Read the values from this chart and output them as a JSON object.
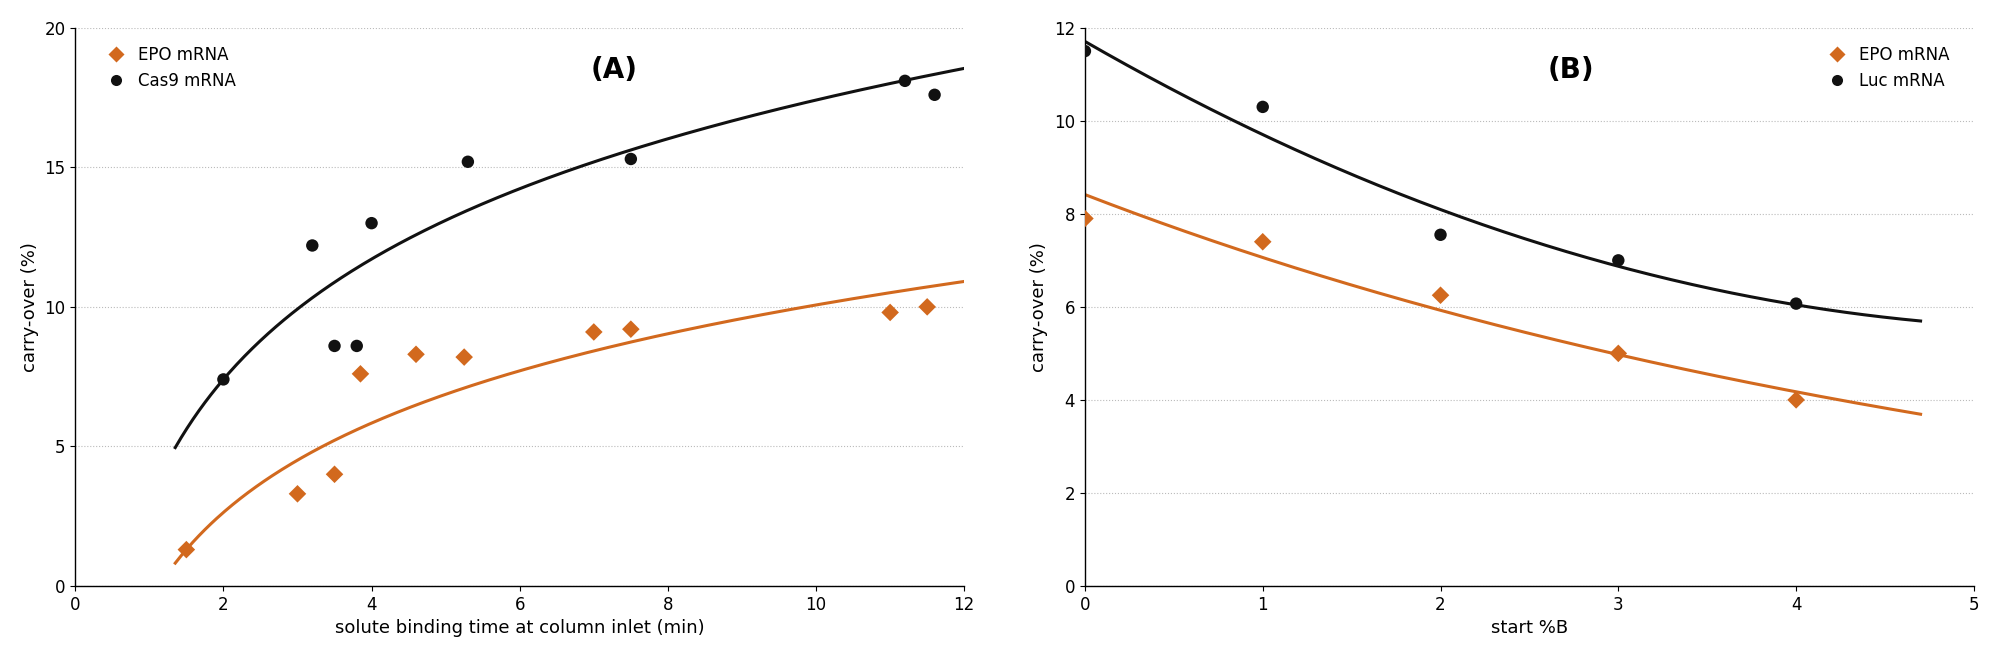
{
  "panel_A": {
    "title": "(A)",
    "xlabel": "solute binding time at column inlet (min)",
    "ylabel": "carry-over (%)",
    "xlim": [
      0,
      12
    ],
    "ylim": [
      0,
      20
    ],
    "xticks": [
      0,
      2,
      4,
      6,
      8,
      10,
      12
    ],
    "yticks": [
      0,
      5,
      10,
      15,
      20
    ],
    "epo_scatter_x": [
      1.5,
      3.0,
      3.5,
      3.85,
      4.6,
      5.25,
      7.0,
      7.5,
      11.0,
      11.5
    ],
    "epo_scatter_y": [
      1.3,
      3.3,
      4.0,
      7.6,
      8.3,
      8.2,
      9.1,
      9.2,
      9.8,
      10.0
    ],
    "cas9_scatter_x": [
      2.0,
      3.2,
      3.5,
      3.8,
      4.0,
      5.3,
      7.5,
      11.2,
      11.6
    ],
    "cas9_scatter_y": [
      7.4,
      12.2,
      8.6,
      8.6,
      13.0,
      15.2,
      15.3,
      18.1,
      17.6
    ],
    "epo_curve_a": 3.3,
    "epo_curve_b": 0.46,
    "cas9_curve_a": 6.22,
    "cas9_curve_b": 3.09,
    "legend_epo": "EPO mRNA",
    "legend_cas9": "Cas9 mRNA"
  },
  "panel_B": {
    "title": "(B)",
    "xlabel": "start %B",
    "ylabel": "carry-over (%)",
    "xlim": [
      0,
      5
    ],
    "ylim": [
      0,
      12
    ],
    "xticks": [
      0,
      1,
      2,
      3,
      4,
      5
    ],
    "yticks": [
      0,
      2,
      4,
      6,
      8,
      10,
      12
    ],
    "epo_scatter_x": [
      0.0,
      1.0,
      2.0,
      3.0,
      4.0
    ],
    "epo_scatter_y": [
      7.9,
      7.4,
      6.25,
      5.0,
      4.0
    ],
    "luc_scatter_x": [
      0.0,
      1.0,
      2.0,
      3.0,
      4.0
    ],
    "luc_scatter_y": [
      11.5,
      10.3,
      7.55,
      7.0,
      6.07
    ],
    "legend_epo": "EPO mRNA",
    "legend_luc": "Luc mRNA"
  },
  "orange_color": "#D2691E",
  "black_color": "#111111",
  "background_color": "#ffffff",
  "grid_color": "#bbbbbb",
  "title_fontsize": 20,
  "label_fontsize": 13,
  "tick_fontsize": 12,
  "legend_fontsize": 12
}
